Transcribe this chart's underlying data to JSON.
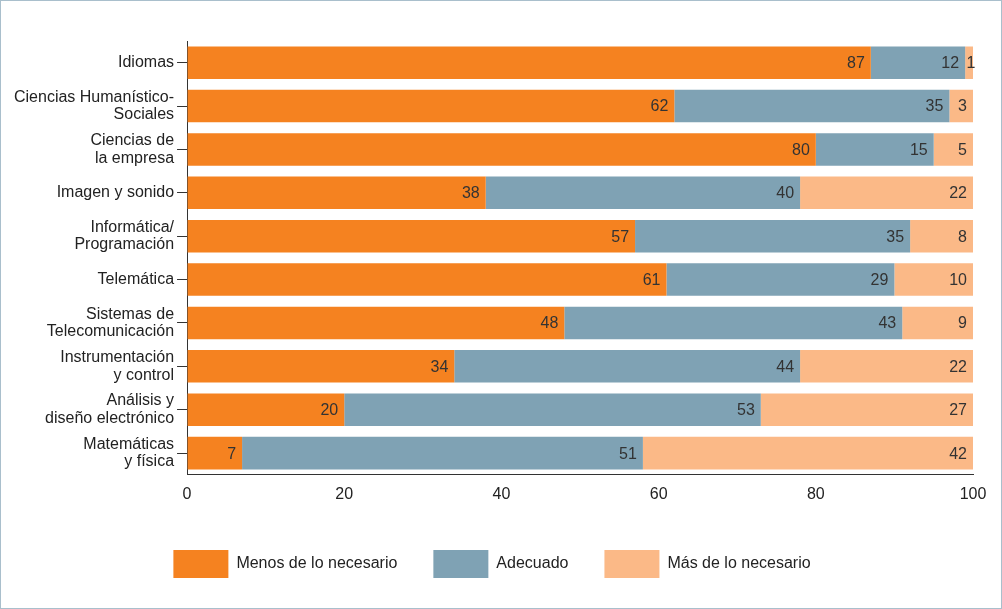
{
  "chart_data": {
    "type": "bar",
    "orientation": "horizontal",
    "stacked": true,
    "categories": [
      "Idiomas",
      "Ciencias Humanístico-\nSociales",
      "Ciencias de\nla empresa",
      "Imagen y sonido",
      "Informática/\nProgramación",
      "Telemática",
      "Sistemas de\nTelecomunicación",
      "Instrumentación\ny control",
      "Análisis y\ndiseño electrónico",
      "Matemáticas\ny física"
    ],
    "series": [
      {
        "name": "Menos de lo necesario",
        "color": "#f58220",
        "values": [
          87,
          62,
          80,
          38,
          57,
          61,
          48,
          34,
          20,
          7
        ]
      },
      {
        "name": "Adecuado",
        "color": "#7fa2b4",
        "values": [
          12,
          35,
          15,
          40,
          35,
          29,
          43,
          44,
          53,
          51
        ]
      },
      {
        "name": "Más de lo necesario",
        "color": "#fbb987",
        "values": [
          1,
          3,
          5,
          22,
          8,
          10,
          9,
          22,
          27,
          42
        ]
      }
    ],
    "xlim": [
      0,
      100
    ],
    "xticks": [
      0,
      20,
      40,
      60,
      80,
      100
    ],
    "grid": false,
    "legend": "bottom",
    "data_labels": true
  }
}
